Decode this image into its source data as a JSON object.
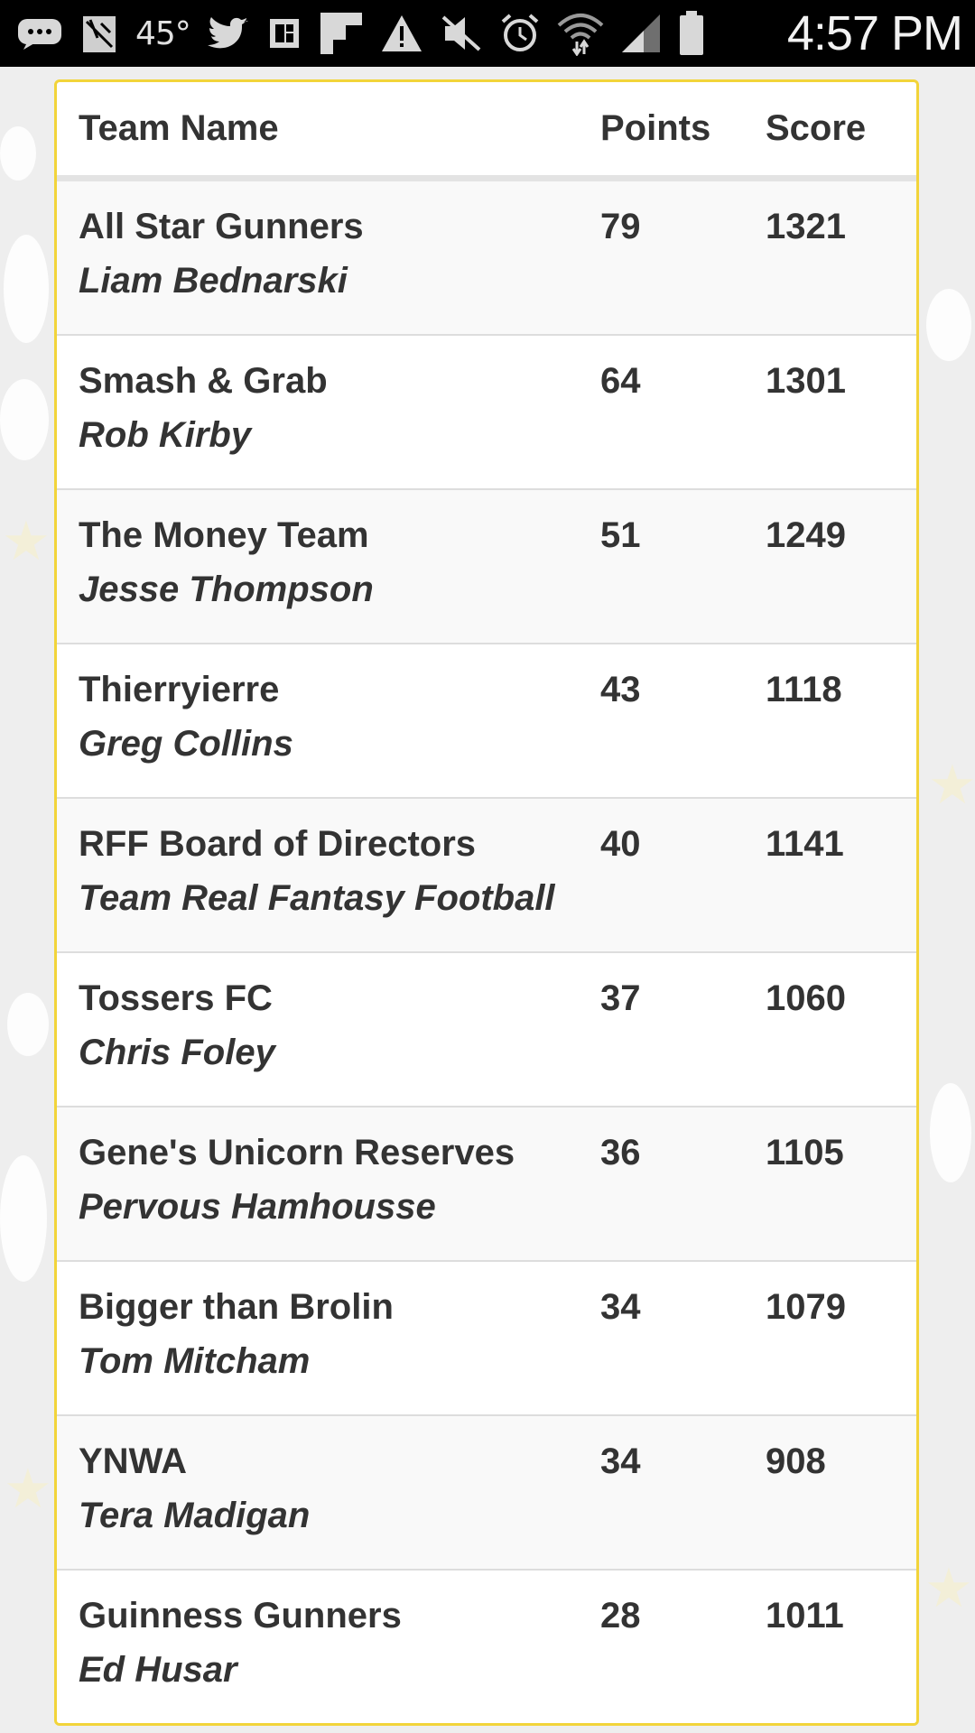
{
  "status_bar": {
    "temperature": "45°",
    "time": "4:57 PM",
    "icons": [
      "messages-icon",
      "gallery-icon",
      "weather-icon",
      "twitter-icon",
      "flipboard-icon",
      "flipboard-f-icon",
      "warning-icon",
      "mute-icon",
      "alarm-icon",
      "wifi-icon",
      "signal-icon",
      "battery-icon"
    ]
  },
  "table": {
    "headers": {
      "team_name": "Team Name",
      "points": "Points",
      "score": "Score"
    },
    "rows": [
      {
        "team": "All Star Gunners",
        "manager": "Liam Bednarski",
        "points": "79",
        "score": "1321"
      },
      {
        "team": "Smash & Grab",
        "manager": "Rob Kirby",
        "points": "64",
        "score": "1301"
      },
      {
        "team": "The Money Team",
        "manager": "Jesse Thompson",
        "points": "51",
        "score": "1249"
      },
      {
        "team": "Thierryierre",
        "manager": "Greg Collins",
        "points": "43",
        "score": "1118"
      },
      {
        "team": "RFF Board of Directors",
        "manager": "Team Real Fantasy Football",
        "points": "40",
        "score": "1141"
      },
      {
        "team": "Tossers FC",
        "manager": "Chris Foley",
        "points": "37",
        "score": "1060"
      },
      {
        "team": "Gene's Unicorn Reserves",
        "manager": "Pervous Hamhousse",
        "points": "36",
        "score": "1105"
      },
      {
        "team": "Bigger than Brolin",
        "manager": "Tom Mitcham",
        "points": "34",
        "score": "1079"
      },
      {
        "team": "YNWA",
        "manager": "Tera Madigan",
        "points": "34",
        "score": "908"
      },
      {
        "team": "Guinness Gunners",
        "manager": "Ed Husar",
        "points": "28",
        "score": "1011"
      }
    ]
  },
  "colors": {
    "card_border": "#f2d43a",
    "text": "#333333",
    "status_bar_bg": "#000000"
  }
}
